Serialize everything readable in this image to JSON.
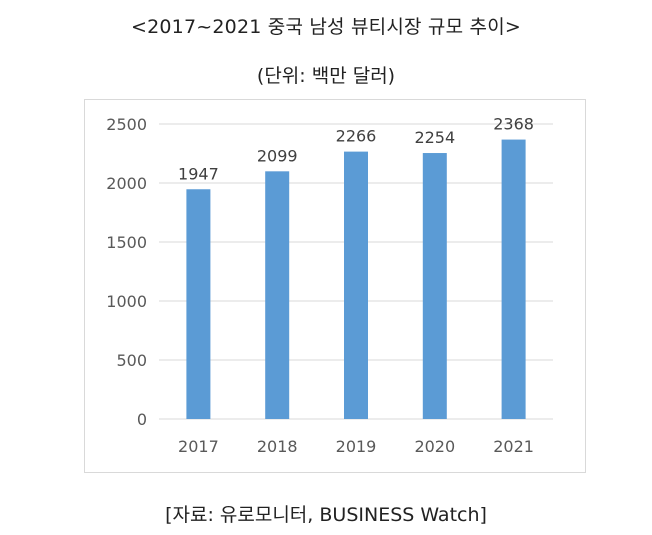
{
  "header": {
    "title": "<2017~2021 중국 남성 뷰티시장 규모 추이>",
    "unit": "(단위: 백만 달러)"
  },
  "footer": {
    "source": "[자료: 유로모니터, BUSINESS Watch]"
  },
  "chart_data": {
    "type": "bar",
    "title": "<2017~2021 중국 남성 뷰티시장 규모 추이>",
    "subtitle": "(단위: 백만 달러)",
    "categories": [
      "2017",
      "2018",
      "2019",
      "2020",
      "2021"
    ],
    "values": [
      1947,
      2099,
      2266,
      2254,
      2368
    ],
    "value_labels": [
      "1947",
      "2099",
      "2266",
      "2254",
      "2368"
    ],
    "ylim": [
      0,
      2500
    ],
    "yticks": [
      "0",
      "500",
      "1000",
      "1500",
      "2000",
      "2500"
    ],
    "ytick_values": [
      0,
      500,
      1000,
      1500,
      2000,
      2500
    ],
    "grid": true,
    "legend": "none",
    "bar_color": "#5b9bd5",
    "grid_color": "#d9d9d9"
  }
}
